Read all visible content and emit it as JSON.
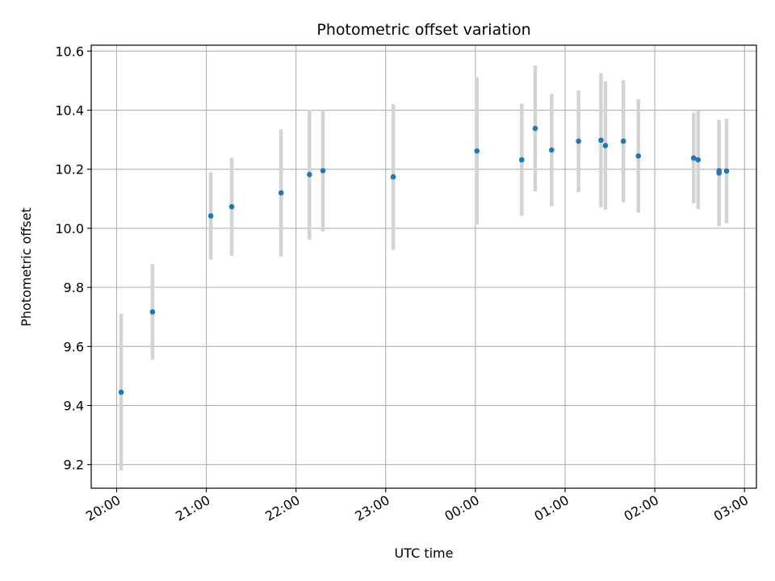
{
  "chart_data": {
    "type": "scatter",
    "title": "Photometric offset variation",
    "xlabel": "UTC time",
    "ylabel": "Photometric offset",
    "x_kind": "time",
    "x_start_date": "2024-01-01",
    "x_range": [
      "2024-01-01T19:43",
      "2024-01-02T03:08"
    ],
    "ylim": [
      9.12,
      10.62
    ],
    "x_ticks": [
      {
        "value": "2024-01-01T20:00",
        "label": "20:00"
      },
      {
        "value": "2024-01-01T21:00",
        "label": "21:00"
      },
      {
        "value": "2024-01-01T22:00",
        "label": "22:00"
      },
      {
        "value": "2024-01-01T23:00",
        "label": "23:00"
      },
      {
        "value": "2024-01-02T00:00",
        "label": "00:00"
      },
      {
        "value": "2024-01-02T01:00",
        "label": "01:00"
      },
      {
        "value": "2024-01-02T02:00",
        "label": "02:00"
      },
      {
        "value": "2024-01-02T03:00",
        "label": "03:00"
      }
    ],
    "y_ticks": [
      {
        "value": 9.2,
        "label": "9.2"
      },
      {
        "value": 9.4,
        "label": "9.4"
      },
      {
        "value": 9.6,
        "label": "9.6"
      },
      {
        "value": 9.8,
        "label": "9.8"
      },
      {
        "value": 10.0,
        "label": "10.0"
      },
      {
        "value": 10.2,
        "label": "10.2"
      },
      {
        "value": 10.4,
        "label": "10.4"
      },
      {
        "value": 10.6,
        "label": "10.6"
      }
    ],
    "grid": true,
    "marker_color": "#1f77b4",
    "errorbar_color": "#d3d3d3",
    "points": [
      {
        "t": "2024-01-01T20:03",
        "y": 9.445,
        "err": 0.265
      },
      {
        "t": "2024-01-01T20:24",
        "y": 9.717,
        "err": 0.162
      },
      {
        "t": "2024-01-01T21:03",
        "y": 10.042,
        "err": 0.148
      },
      {
        "t": "2024-01-01T21:17",
        "y": 10.073,
        "err": 0.166
      },
      {
        "t": "2024-01-01T21:50",
        "y": 10.12,
        "err": 0.215
      },
      {
        "t": "2024-01-01T22:09",
        "y": 10.182,
        "err": 0.22
      },
      {
        "t": "2024-01-01T22:18",
        "y": 10.195,
        "err": 0.205
      },
      {
        "t": "2024-01-01T23:05",
        "y": 10.174,
        "err": 0.247
      },
      {
        "t": "2024-01-02T00:01",
        "y": 10.262,
        "err": 0.25
      },
      {
        "t": "2024-01-02T00:31",
        "y": 10.232,
        "err": 0.19
      },
      {
        "t": "2024-01-02T00:40",
        "y": 10.338,
        "err": 0.213
      },
      {
        "t": "2024-01-02T00:51",
        "y": 10.265,
        "err": 0.19
      },
      {
        "t": "2024-01-02T01:09",
        "y": 10.295,
        "err": 0.172
      },
      {
        "t": "2024-01-02T01:24",
        "y": 10.298,
        "err": 0.227
      },
      {
        "t": "2024-01-02T01:27",
        "y": 10.28,
        "err": 0.217
      },
      {
        "t": "2024-01-02T01:39",
        "y": 10.295,
        "err": 0.207
      },
      {
        "t": "2024-01-02T01:49",
        "y": 10.245,
        "err": 0.192
      },
      {
        "t": "2024-01-02T02:26",
        "y": 10.238,
        "err": 0.153
      },
      {
        "t": "2024-01-02T02:29",
        "y": 10.232,
        "err": 0.167
      },
      {
        "t": "2024-01-02T02:43",
        "y": 10.187,
        "err": 0.18
      },
      {
        "t": "2024-01-02T02:43",
        "y": 10.195,
        "err": 0.163
      },
      {
        "t": "2024-01-02T02:48",
        "y": 10.194,
        "err": 0.177
      }
    ]
  }
}
